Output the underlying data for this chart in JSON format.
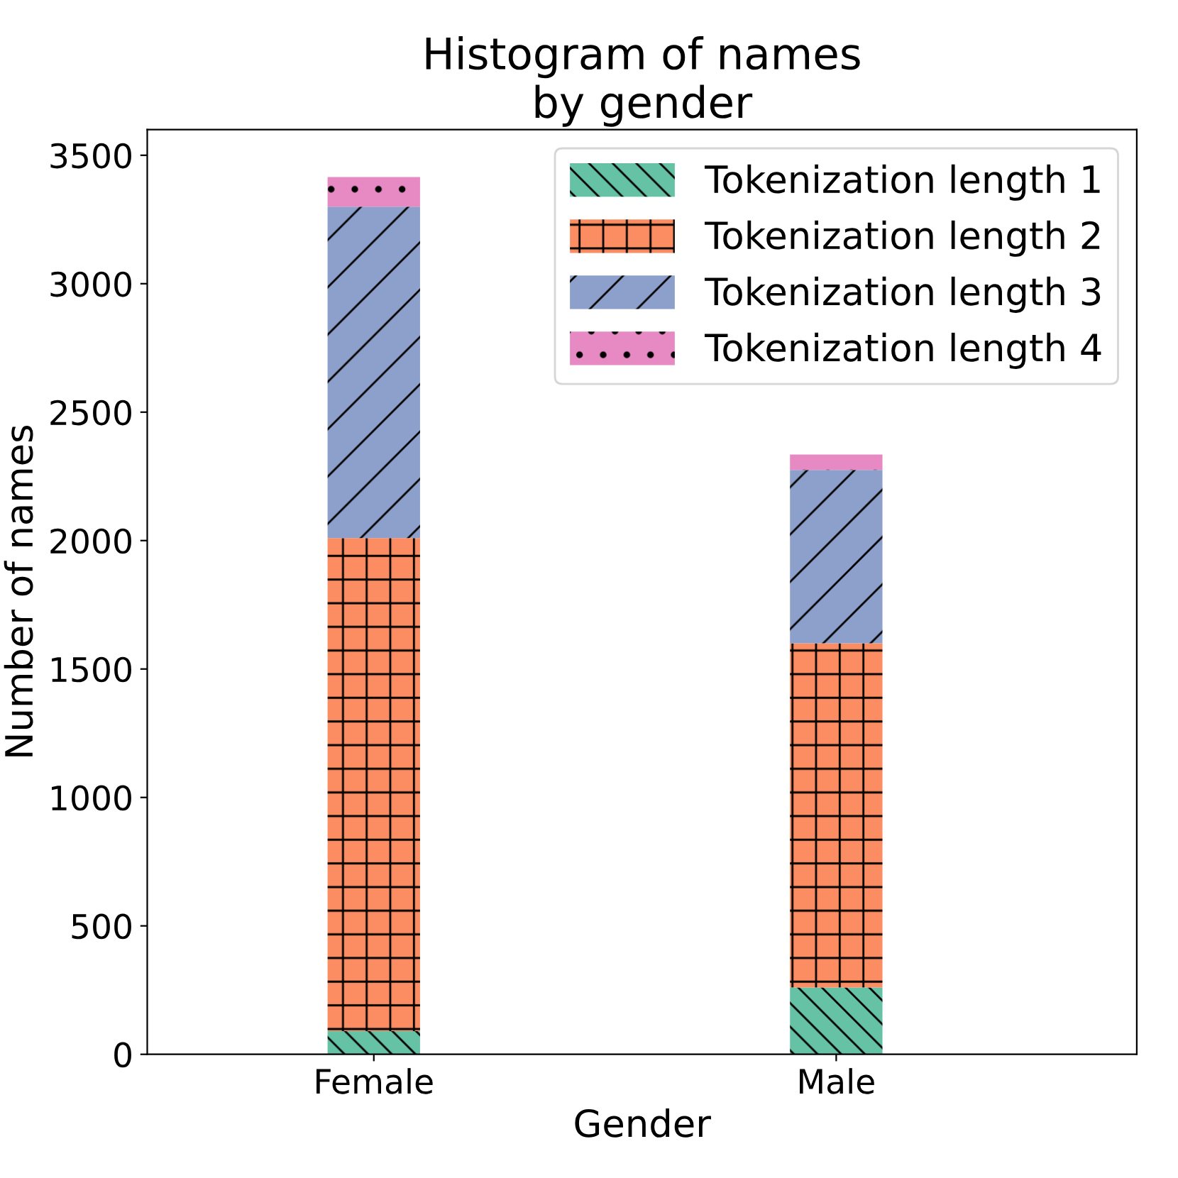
{
  "chart_data": {
    "type": "bar",
    "title": "Histogram of names\nby gender",
    "xlabel": "Gender",
    "ylabel": "Number of names",
    "categories": [
      "Female",
      "Male"
    ],
    "stacked": true,
    "series": [
      {
        "name": "Tokenization length 1",
        "color": "#66c2a5",
        "values": [
          90,
          260
        ]
      },
      {
        "name": "Tokenization length 2",
        "color": "#fc8d62",
        "values": [
          1920,
          1340
        ]
      },
      {
        "name": "Tokenization length 3",
        "color": "#8da0cb",
        "values": [
          1290,
          675
        ]
      },
      {
        "name": "Tokenization length 4",
        "color": "#e78ac3",
        "values": [
          115,
          60
        ]
      }
    ],
    "ylim": [
      0,
      3600
    ],
    "yticks": [
      0,
      500,
      1000,
      1500,
      2000,
      2500,
      3000,
      3500
    ],
    "grid": false,
    "legend": "top right"
  }
}
